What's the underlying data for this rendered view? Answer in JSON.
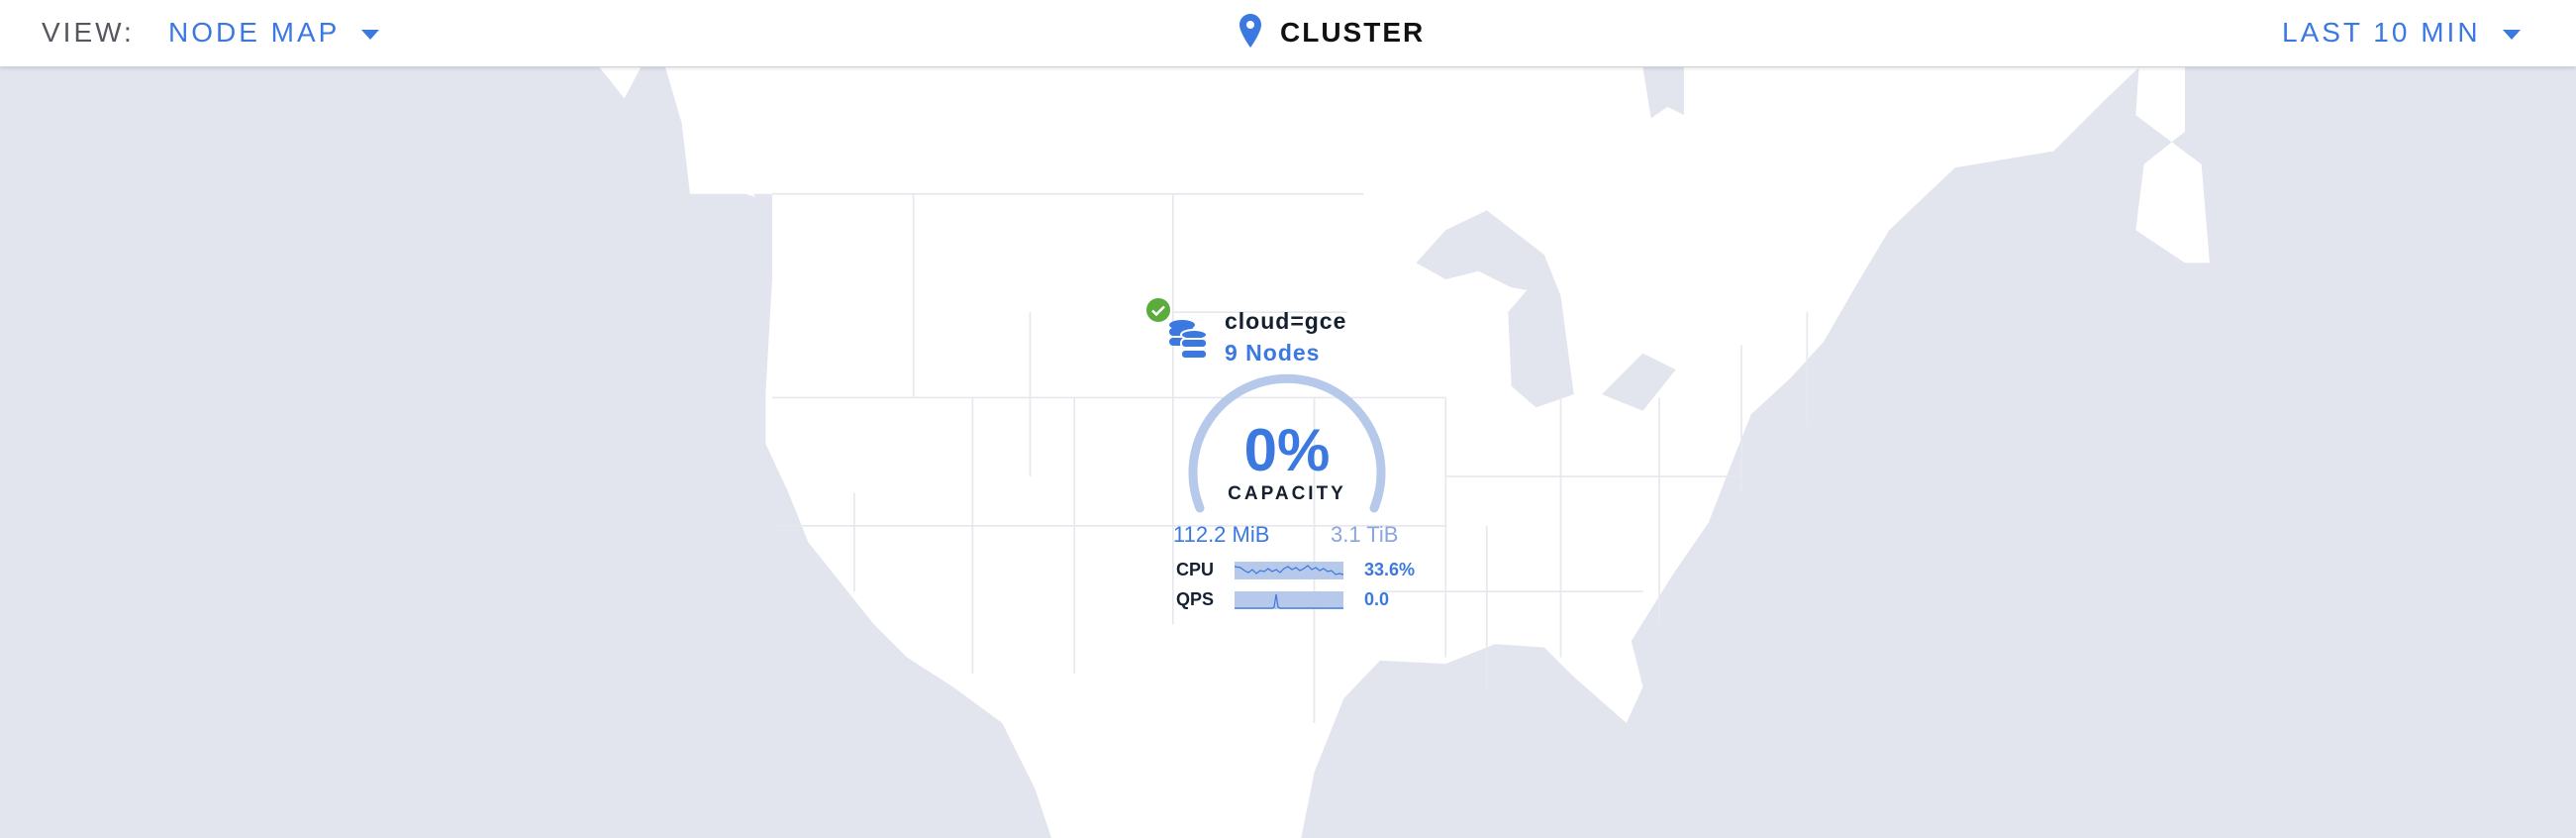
{
  "header": {
    "view_label": "VIEW:",
    "view_value": "NODE MAP",
    "title": "CLUSTER",
    "time_range": "LAST 10 MIN",
    "title_icon": "map-pin-icon"
  },
  "locality": {
    "name": "cloud=gce",
    "nodes": "9 Nodes",
    "status": "healthy",
    "capacity_percent": "0%",
    "capacity_label": "CAPACITY",
    "used": "112.2 MiB",
    "total": "3.1 TiB",
    "metrics": [
      {
        "label": "CPU",
        "value": "33.6%"
      },
      {
        "label": "QPS",
        "value": "0.0"
      }
    ]
  },
  "colors": {
    "accent": "#3b78e0",
    "gauge": "#b7c9ea",
    "ok": "#5aac3c",
    "sea": "#e2e5ee",
    "land": "#ffffff"
  }
}
